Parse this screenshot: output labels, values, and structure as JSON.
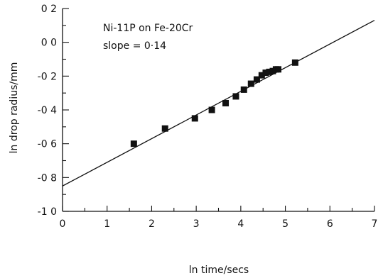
{
  "chart_data": {
    "type": "scatter",
    "title": "",
    "xlabel": "ln time/secs",
    "ylabel": "ln drop radius/mm",
    "xlim": [
      0,
      7
    ],
    "ylim": [
      -1.0,
      0.2
    ],
    "xticks": [
      0,
      1,
      2,
      3,
      4,
      5,
      6,
      7
    ],
    "xtick_labels": [
      "0",
      "1",
      "2",
      "3",
      "4",
      "5",
      "6",
      "7"
    ],
    "yticks": [
      0.2,
      0.0,
      -0.2,
      -0.4,
      -0.6,
      -0.8,
      -1.0
    ],
    "ytick_labels": [
      "0 2",
      "0 0",
      "-0 2",
      "-0 4",
      "-0 6",
      "-0 8",
      "-1 0"
    ],
    "grid": false,
    "annotations": [
      "Ni-11P on Fe-20Cr",
      "slope = 0·14"
    ],
    "series": [
      {
        "points": [
          [
            1.6,
            -0.6
          ],
          [
            2.3,
            -0.51
          ],
          [
            2.97,
            -0.45
          ],
          [
            3.35,
            -0.4
          ],
          [
            3.66,
            -0.36
          ],
          [
            3.89,
            -0.32
          ],
          [
            4.07,
            -0.28
          ],
          [
            4.23,
            -0.245
          ],
          [
            4.36,
            -0.22
          ],
          [
            4.47,
            -0.195
          ],
          [
            4.56,
            -0.18
          ],
          [
            4.64,
            -0.175
          ],
          [
            4.72,
            -0.17
          ],
          [
            4.79,
            -0.16
          ],
          [
            4.84,
            -0.16
          ],
          [
            5.22,
            -0.12
          ]
        ]
      }
    ],
    "fit_line": {
      "slope": 0.14,
      "intercept": -0.85,
      "x_range": [
        0,
        7
      ]
    }
  }
}
